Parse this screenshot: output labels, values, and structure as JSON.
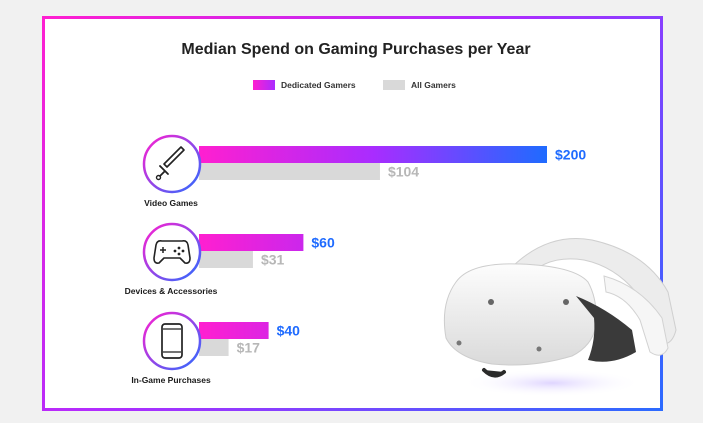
{
  "chart_data": {
    "type": "bar",
    "orientation": "horizontal",
    "title": "Median Spend on Gaming Purchases per Year",
    "categories": [
      "Video Games",
      "Devices & Accessories",
      "In-Game Purchases"
    ],
    "series": [
      {
        "name": "Dedicated Gamers",
        "values": [
          200,
          60,
          40
        ],
        "labels": [
          "$200",
          "$60",
          "$40"
        ]
      },
      {
        "name": "All Gamers",
        "values": [
          104,
          31,
          17
        ],
        "labels": [
          "$104",
          "$31",
          "$17"
        ]
      }
    ],
    "category_icons": [
      "sword-icon",
      "gamepad-icon",
      "smartphone-icon"
    ],
    "xlim": [
      0,
      200
    ],
    "legend": "top-center",
    "grid": false,
    "colors": {
      "dedicated_start": "#ff1fd0",
      "dedicated_mid": "#a92cff",
      "dedicated_end": "#1f6bff",
      "all": "#d9d9d9",
      "label_blue": "#1f6bff",
      "label_gray": "#b7b7b7"
    }
  },
  "decorations": {
    "headset_image": "vr-headset-image"
  }
}
